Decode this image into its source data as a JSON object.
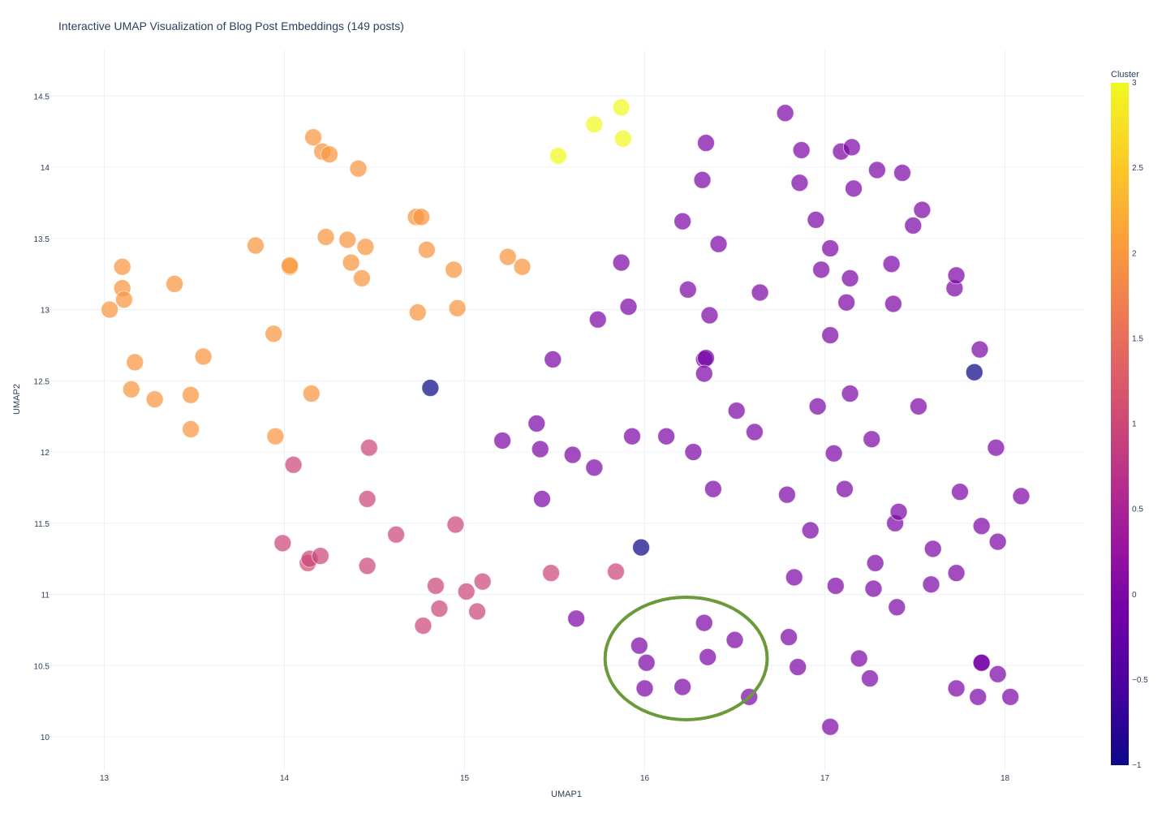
{
  "chart_data": {
    "type": "scatter",
    "title": "Interactive UMAP Visualization of Blog Post Embeddings (149 posts)",
    "xlabel": "UMAP1",
    "ylabel": "UMAP2",
    "xlim": [
      12.7,
      18.45
    ],
    "ylim": [
      9.85,
      14.7
    ],
    "xticks": [
      13,
      14,
      15,
      16,
      17,
      18
    ],
    "yticks": [
      10,
      10.5,
      11,
      11.5,
      12,
      12.5,
      13,
      13.5,
      14,
      14.5
    ],
    "grid": true,
    "colorbar": {
      "title": "Cluster",
      "range": [
        -1,
        3
      ],
      "ticks": [
        -1,
        -0.5,
        0,
        0.5,
        1,
        1.5,
        2,
        2.5,
        3
      ],
      "colorscale": [
        "#0d0887",
        "#46039f",
        "#7201a8",
        "#9c179e",
        "#bd3786",
        "#d8576b",
        "#ed7953",
        "#fb9f3a",
        "#fdca26",
        "#f0f921"
      ]
    },
    "annotation": {
      "shape": "ellipse",
      "color": "#6a9a3a",
      "center": [
        16.23,
        10.55
      ],
      "rx": 0.45,
      "ry": 0.43
    },
    "points": [
      {
        "x": 13.03,
        "y": 13.0,
        "c": 2
      },
      {
        "x": 13.1,
        "y": 13.3,
        "c": 2
      },
      {
        "x": 13.1,
        "y": 13.15,
        "c": 2
      },
      {
        "x": 13.11,
        "y": 13.07,
        "c": 2
      },
      {
        "x": 13.17,
        "y": 12.63,
        "c": 2
      },
      {
        "x": 13.15,
        "y": 12.44,
        "c": 2
      },
      {
        "x": 13.28,
        "y": 12.37,
        "c": 2
      },
      {
        "x": 13.39,
        "y": 13.18,
        "c": 2
      },
      {
        "x": 13.48,
        "y": 12.4,
        "c": 2
      },
      {
        "x": 13.48,
        "y": 12.16,
        "c": 2
      },
      {
        "x": 13.55,
        "y": 12.67,
        "c": 2
      },
      {
        "x": 13.84,
        "y": 13.45,
        "c": 2
      },
      {
        "x": 13.94,
        "y": 12.83,
        "c": 2
      },
      {
        "x": 13.95,
        "y": 12.11,
        "c": 2
      },
      {
        "x": 14.03,
        "y": 13.3,
        "c": 2
      },
      {
        "x": 14.03,
        "y": 13.31,
        "c": 2.05
      },
      {
        "x": 14.15,
        "y": 12.41,
        "c": 2
      },
      {
        "x": 14.16,
        "y": 14.21,
        "c": 2
      },
      {
        "x": 14.21,
        "y": 14.11,
        "c": 2
      },
      {
        "x": 14.25,
        "y": 14.09,
        "c": 2
      },
      {
        "x": 14.23,
        "y": 13.51,
        "c": 2
      },
      {
        "x": 14.35,
        "y": 13.49,
        "c": 2
      },
      {
        "x": 14.37,
        "y": 13.33,
        "c": 2
      },
      {
        "x": 14.41,
        "y": 13.99,
        "c": 2
      },
      {
        "x": 14.43,
        "y": 13.22,
        "c": 2
      },
      {
        "x": 14.45,
        "y": 13.44,
        "c": 2
      },
      {
        "x": 14.73,
        "y": 13.65,
        "c": 2
      },
      {
        "x": 14.76,
        "y": 13.65,
        "c": 2
      },
      {
        "x": 14.74,
        "y": 12.98,
        "c": 2
      },
      {
        "x": 14.79,
        "y": 13.42,
        "c": 2
      },
      {
        "x": 14.94,
        "y": 13.28,
        "c": 2
      },
      {
        "x": 14.96,
        "y": 13.01,
        "c": 2
      },
      {
        "x": 15.24,
        "y": 13.37,
        "c": 2
      },
      {
        "x": 15.32,
        "y": 13.3,
        "c": 2
      },
      {
        "x": 15.52,
        "y": 14.08,
        "c": 3
      },
      {
        "x": 15.72,
        "y": 14.3,
        "c": 3
      },
      {
        "x": 15.87,
        "y": 14.42,
        "c": 3
      },
      {
        "x": 15.88,
        "y": 14.2,
        "c": 3
      },
      {
        "x": 14.05,
        "y": 11.91,
        "c": 1
      },
      {
        "x": 13.99,
        "y": 11.36,
        "c": 1
      },
      {
        "x": 14.13,
        "y": 11.22,
        "c": 1.1
      },
      {
        "x": 14.14,
        "y": 11.25,
        "c": 1
      },
      {
        "x": 14.2,
        "y": 11.27,
        "c": 1
      },
      {
        "x": 14.47,
        "y": 12.03,
        "c": 1
      },
      {
        "x": 14.46,
        "y": 11.67,
        "c": 1
      },
      {
        "x": 14.46,
        "y": 11.2,
        "c": 1
      },
      {
        "x": 14.62,
        "y": 11.42,
        "c": 1
      },
      {
        "x": 14.77,
        "y": 10.78,
        "c": 1
      },
      {
        "x": 14.84,
        "y": 11.06,
        "c": 1
      },
      {
        "x": 14.86,
        "y": 10.9,
        "c": 1
      },
      {
        "x": 14.95,
        "y": 11.49,
        "c": 1
      },
      {
        "x": 15.01,
        "y": 11.02,
        "c": 1
      },
      {
        "x": 15.07,
        "y": 10.88,
        "c": 1
      },
      {
        "x": 15.1,
        "y": 11.09,
        "c": 1
      },
      {
        "x": 15.48,
        "y": 11.15,
        "c": 1
      },
      {
        "x": 15.84,
        "y": 11.16,
        "c": 1
      },
      {
        "x": 14.81,
        "y": 12.45,
        "c": -1
      },
      {
        "x": 15.98,
        "y": 11.33,
        "c": -1
      },
      {
        "x": 17.83,
        "y": 12.56,
        "c": -1
      },
      {
        "x": 15.21,
        "y": 12.08,
        "c": 0
      },
      {
        "x": 15.4,
        "y": 12.2,
        "c": 0
      },
      {
        "x": 15.42,
        "y": 12.02,
        "c": 0
      },
      {
        "x": 15.43,
        "y": 11.67,
        "c": 0
      },
      {
        "x": 15.49,
        "y": 12.65,
        "c": 0
      },
      {
        "x": 15.6,
        "y": 11.98,
        "c": 0
      },
      {
        "x": 15.62,
        "y": 10.83,
        "c": 0
      },
      {
        "x": 15.72,
        "y": 11.89,
        "c": 0
      },
      {
        "x": 15.74,
        "y": 12.93,
        "c": 0
      },
      {
        "x": 15.87,
        "y": 13.33,
        "c": 0
      },
      {
        "x": 15.91,
        "y": 13.02,
        "c": 0
      },
      {
        "x": 15.93,
        "y": 12.11,
        "c": 0
      },
      {
        "x": 15.97,
        "y": 10.64,
        "c": 0
      },
      {
        "x": 16.01,
        "y": 10.52,
        "c": 0
      },
      {
        "x": 16.0,
        "y": 10.34,
        "c": 0
      },
      {
        "x": 16.12,
        "y": 12.11,
        "c": 0
      },
      {
        "x": 16.21,
        "y": 13.62,
        "c": 0
      },
      {
        "x": 16.24,
        "y": 13.14,
        "c": 0
      },
      {
        "x": 16.21,
        "y": 10.35,
        "c": 0
      },
      {
        "x": 16.27,
        "y": 12.0,
        "c": 0
      },
      {
        "x": 16.32,
        "y": 13.91,
        "c": 0
      },
      {
        "x": 16.33,
        "y": 12.65,
        "c": 0
      },
      {
        "x": 16.34,
        "y": 12.66,
        "c": -0.1
      },
      {
        "x": 16.33,
        "y": 12.55,
        "c": 0
      },
      {
        "x": 16.33,
        "y": 10.8,
        "c": 0
      },
      {
        "x": 16.34,
        "y": 14.17,
        "c": 0
      },
      {
        "x": 16.36,
        "y": 12.96,
        "c": 0
      },
      {
        "x": 16.35,
        "y": 10.56,
        "c": 0
      },
      {
        "x": 16.38,
        "y": 11.74,
        "c": 0
      },
      {
        "x": 16.41,
        "y": 13.46,
        "c": 0
      },
      {
        "x": 16.51,
        "y": 12.29,
        "c": 0
      },
      {
        "x": 16.5,
        "y": 10.68,
        "c": 0
      },
      {
        "x": 16.58,
        "y": 10.28,
        "c": 0
      },
      {
        "x": 16.61,
        "y": 12.14,
        "c": 0
      },
      {
        "x": 16.64,
        "y": 13.12,
        "c": 0
      },
      {
        "x": 16.78,
        "y": 14.38,
        "c": 0
      },
      {
        "x": 16.79,
        "y": 11.7,
        "c": 0
      },
      {
        "x": 16.8,
        "y": 10.7,
        "c": 0
      },
      {
        "x": 16.83,
        "y": 11.12,
        "c": 0
      },
      {
        "x": 16.86,
        "y": 13.89,
        "c": 0
      },
      {
        "x": 16.85,
        "y": 10.49,
        "c": 0
      },
      {
        "x": 16.87,
        "y": 14.12,
        "c": 0
      },
      {
        "x": 16.92,
        "y": 11.45,
        "c": 0
      },
      {
        "x": 16.95,
        "y": 13.63,
        "c": 0
      },
      {
        "x": 16.96,
        "y": 12.32,
        "c": 0
      },
      {
        "x": 16.98,
        "y": 13.28,
        "c": 0
      },
      {
        "x": 17.03,
        "y": 13.43,
        "c": 0
      },
      {
        "x": 17.03,
        "y": 12.82,
        "c": 0
      },
      {
        "x": 17.05,
        "y": 11.99,
        "c": 0
      },
      {
        "x": 17.06,
        "y": 11.06,
        "c": 0
      },
      {
        "x": 17.03,
        "y": 10.07,
        "c": 0
      },
      {
        "x": 17.09,
        "y": 14.11,
        "c": 0
      },
      {
        "x": 17.11,
        "y": 11.74,
        "c": 0
      },
      {
        "x": 17.12,
        "y": 13.05,
        "c": 0
      },
      {
        "x": 17.14,
        "y": 13.22,
        "c": 0
      },
      {
        "x": 17.14,
        "y": 12.41,
        "c": 0
      },
      {
        "x": 17.15,
        "y": 14.14,
        "c": 0
      },
      {
        "x": 17.16,
        "y": 13.85,
        "c": 0
      },
      {
        "x": 17.19,
        "y": 10.55,
        "c": 0
      },
      {
        "x": 17.25,
        "y": 10.41,
        "c": 0
      },
      {
        "x": 17.26,
        "y": 12.09,
        "c": 0
      },
      {
        "x": 17.27,
        "y": 11.04,
        "c": 0
      },
      {
        "x": 17.28,
        "y": 11.22,
        "c": 0
      },
      {
        "x": 17.29,
        "y": 13.98,
        "c": 0
      },
      {
        "x": 17.37,
        "y": 13.32,
        "c": 0
      },
      {
        "x": 17.38,
        "y": 13.04,
        "c": 0
      },
      {
        "x": 17.39,
        "y": 11.5,
        "c": 0
      },
      {
        "x": 17.4,
        "y": 10.91,
        "c": 0
      },
      {
        "x": 17.41,
        "y": 11.58,
        "c": 0
      },
      {
        "x": 17.43,
        "y": 13.96,
        "c": 0
      },
      {
        "x": 17.49,
        "y": 13.59,
        "c": 0
      },
      {
        "x": 17.52,
        "y": 12.32,
        "c": 0
      },
      {
        "x": 17.54,
        "y": 13.7,
        "c": 0
      },
      {
        "x": 17.59,
        "y": 11.07,
        "c": 0
      },
      {
        "x": 17.6,
        "y": 11.32,
        "c": 0
      },
      {
        "x": 17.72,
        "y": 13.15,
        "c": 0
      },
      {
        "x": 17.73,
        "y": 13.24,
        "c": 0
      },
      {
        "x": 17.73,
        "y": 11.15,
        "c": 0
      },
      {
        "x": 17.73,
        "y": 10.34,
        "c": 0
      },
      {
        "x": 17.75,
        "y": 11.72,
        "c": 0
      },
      {
        "x": 17.85,
        "y": 10.28,
        "c": 0
      },
      {
        "x": 17.86,
        "y": 12.72,
        "c": 0
      },
      {
        "x": 17.87,
        "y": 10.52,
        "c": 0
      },
      {
        "x": 17.87,
        "y": 10.52,
        "c": -0.1
      },
      {
        "x": 17.87,
        "y": 11.48,
        "c": 0
      },
      {
        "x": 17.95,
        "y": 12.03,
        "c": 0
      },
      {
        "x": 17.96,
        "y": 11.37,
        "c": 0
      },
      {
        "x": 17.96,
        "y": 10.44,
        "c": 0
      },
      {
        "x": 18.03,
        "y": 10.28,
        "c": 0
      },
      {
        "x": 18.09,
        "y": 11.69,
        "c": 0
      }
    ]
  }
}
